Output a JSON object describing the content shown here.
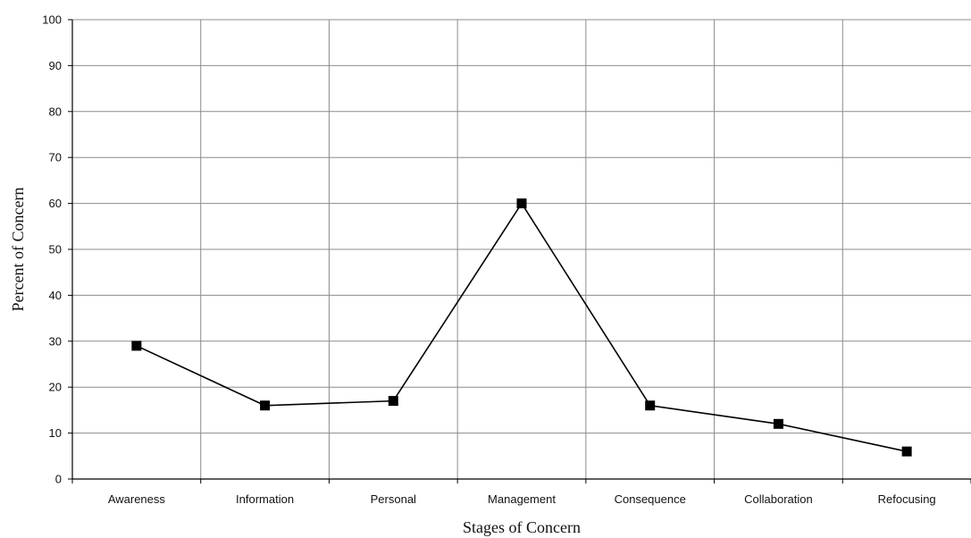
{
  "chart_data": {
    "type": "line",
    "categories": [
      "Awareness",
      "Information",
      "Personal",
      "Management",
      "Consequence",
      "Collaboration",
      "Refocusing"
    ],
    "series": [
      {
        "values": [
          29,
          16,
          17,
          60,
          16,
          12,
          6
        ]
      }
    ],
    "xlabel": "Stages of Concern",
    "ylabel": "Percent of Concern",
    "ylim": [
      0,
      100
    ],
    "yticks": [
      0,
      10,
      20,
      30,
      40,
      50,
      60,
      70,
      80,
      90,
      100
    ],
    "grid": true,
    "legend": "none",
    "marker": "square",
    "colors": {
      "line": "#000000",
      "grid": "#8c8c8c",
      "axis": "#000000"
    }
  }
}
